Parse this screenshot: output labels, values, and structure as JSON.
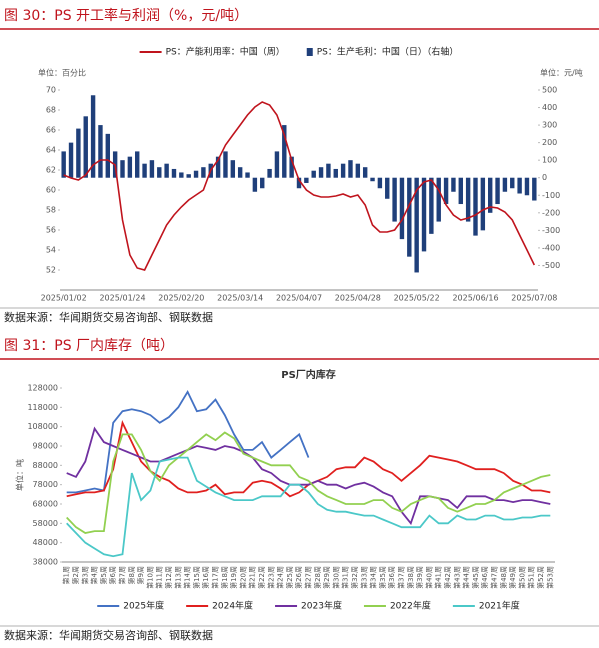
{
  "chart_data": [
    {
      "type": "combo",
      "caption": "图 30：PS 开工率与利润（%，元/吨）",
      "source": "数据来源：华闻期货交易咨询部、钢联数据",
      "y_label": "单位：百分比",
      "y2_label": "单位：元/吨",
      "categories": [
        "2025/01/02",
        null,
        null,
        null,
        null,
        null,
        null,
        null,
        "2025/01/24",
        null,
        null,
        null,
        null,
        null,
        null,
        null,
        "2025/02/20",
        null,
        null,
        null,
        null,
        null,
        null,
        null,
        "2025/03/14",
        null,
        null,
        null,
        null,
        null,
        null,
        null,
        "2025/04/07",
        null,
        null,
        null,
        null,
        null,
        null,
        null,
        "2025/04/28",
        null,
        null,
        null,
        null,
        null,
        null,
        null,
        "2025/05/22",
        null,
        null,
        null,
        null,
        null,
        null,
        null,
        "2025/06/16",
        null,
        null,
        null,
        null,
        null,
        null,
        null,
        "2025/07/08"
      ],
      "series": [
        {
          "name": "PS：产能利用率：中国（周）",
          "type": "line",
          "color": "#c0141d",
          "values": [
            61.5,
            61.2,
            61,
            61.5,
            62.5,
            63,
            63,
            62.5,
            57,
            53.5,
            52.2,
            52,
            53.5,
            55,
            56.5,
            57.5,
            58.3,
            59,
            59.5,
            60,
            62,
            63,
            64.5,
            65.5,
            66.5,
            67.5,
            68.3,
            68.8,
            68.5,
            67.5,
            65.5,
            63,
            61,
            60,
            59.5,
            59.3,
            59.3,
            59.4,
            59.6,
            59.3,
            59.5,
            58.5,
            56.5,
            55.8,
            55.8,
            56,
            57,
            58.5,
            60,
            60.8,
            61,
            60,
            58.5,
            57.5,
            57,
            57.2,
            57.5,
            58,
            58.3,
            58.2,
            57.8,
            57,
            55.5,
            54,
            52.5
          ]
        },
        {
          "name": "PS：生产毛利：中国（日）（右轴）",
          "type": "bar",
          "axis": "y2",
          "color": "#1f3f7a",
          "values": [
            150,
            200,
            280,
            350,
            470,
            300,
            250,
            150,
            100,
            120,
            150,
            80,
            100,
            60,
            80,
            50,
            30,
            20,
            40,
            60,
            80,
            120,
            150,
            100,
            60,
            30,
            -80,
            -60,
            50,
            150,
            300,
            120,
            -60,
            -30,
            40,
            60,
            80,
            50,
            80,
            100,
            80,
            60,
            -20,
            -60,
            -120,
            -250,
            -350,
            -450,
            -540,
            -420,
            -320,
            -250,
            -150,
            -80,
            -150,
            -250,
            -330,
            -300,
            -200,
            -150,
            -80,
            -60,
            -90,
            -100,
            -130
          ]
        }
      ],
      "ylim": [
        50,
        70
      ],
      "yticks": [
        52,
        54,
        56,
        58,
        60,
        62,
        64,
        66,
        68,
        70
      ],
      "y2lim": [
        -640,
        500
      ],
      "y2ticks": [
        500,
        400,
        300,
        200,
        100,
        0,
        -100,
        -200,
        -300,
        -400,
        -500
      ],
      "grid": false,
      "legend": "top"
    },
    {
      "type": "line",
      "caption": "图 31：PS 厂内库存（吨）",
      "source": "数据来源：华闻期货交易咨询部、钢联数据",
      "title": "PS厂内库存",
      "y_label": "单位：吨",
      "categories": [
        "第1周",
        "第2周",
        "第3周",
        "第4周",
        "第5周",
        "第6周",
        "第7周",
        "第8周",
        "第9周",
        "第10周",
        "第11周",
        "第12周",
        "第13周",
        "第14周",
        "第15周",
        "第16周",
        "第17周",
        "第18周",
        "第19周",
        "第20周",
        "第21周",
        "第22周",
        "第23周",
        "第24周",
        "第25周",
        "第26周",
        "第27周",
        "第28周",
        "第29周",
        "第30周",
        "第31周",
        "第32周",
        "第33周",
        "第34周",
        "第35周",
        "第36周",
        "第37周",
        "第38周",
        "第39周",
        "第40周",
        "第41周",
        "第42周",
        "第43周",
        "第44周",
        "第45周",
        "第46周",
        "第47周",
        "第48周",
        "第49周",
        "第50周",
        "第51周",
        "第52周",
        "第53周"
      ],
      "series": [
        {
          "name": "2025年度",
          "color": "#4472c4",
          "values": [
            74000,
            74000,
            75000,
            76000,
            75000,
            110000,
            116000,
            117000,
            116000,
            114000,
            110000,
            113000,
            118000,
            126000,
            116000,
            117000,
            122000,
            114000,
            104000,
            96000,
            96000,
            100000,
            92000,
            96000,
            100000,
            104000,
            92000,
            null,
            null,
            null,
            null,
            null,
            null,
            null,
            null,
            null,
            null,
            null,
            null,
            null,
            null,
            null,
            null,
            null,
            null,
            null,
            null,
            null,
            null,
            null,
            null,
            null,
            null
          ]
        },
        {
          "name": "2024年度",
          "color": "#e0201f",
          "values": [
            72000,
            73000,
            74000,
            74000,
            75000,
            86000,
            110000,
            100000,
            90000,
            85000,
            82000,
            80000,
            76000,
            74000,
            74000,
            75000,
            78000,
            73000,
            74000,
            74000,
            79000,
            80000,
            79000,
            76000,
            72000,
            74000,
            78000,
            80000,
            82000,
            86000,
            87000,
            87000,
            92000,
            90000,
            86000,
            84000,
            80000,
            84000,
            88000,
            93000,
            92000,
            91000,
            90000,
            88000,
            86000,
            86000,
            86000,
            84000,
            80000,
            78000,
            75000,
            75000,
            74000
          ]
        },
        {
          "name": "2023年度",
          "color": "#7030a0",
          "values": [
            84000,
            82000,
            90000,
            107000,
            100000,
            98000,
            96000,
            94000,
            92000,
            90000,
            90000,
            92000,
            94000,
            96000,
            98000,
            97000,
            96000,
            98000,
            97000,
            95000,
            92000,
            86000,
            84000,
            80000,
            78000,
            78000,
            78000,
            80000,
            78000,
            78000,
            76000,
            78000,
            79000,
            77000,
            74000,
            72000,
            64000,
            58000,
            72000,
            72000,
            71000,
            70000,
            66000,
            72000,
            72000,
            72000,
            70000,
            70000,
            69000,
            70000,
            70000,
            69000,
            68000
          ]
        },
        {
          "name": "2022年度",
          "color": "#92d050",
          "values": [
            61000,
            56000,
            53000,
            54000,
            54000,
            90000,
            104000,
            104000,
            96000,
            85000,
            80000,
            88000,
            92000,
            96000,
            100000,
            104000,
            101000,
            105000,
            102000,
            94000,
            92000,
            90000,
            88000,
            88000,
            88000,
            82000,
            80000,
            75000,
            72000,
            70000,
            68000,
            68000,
            68000,
            70000,
            70000,
            66000,
            64000,
            68000,
            70000,
            72000,
            71000,
            66000,
            64000,
            66000,
            68000,
            68000,
            70000,
            74000,
            76000,
            78000,
            80000,
            82000,
            83000
          ]
        },
        {
          "name": "2021年度",
          "color": "#4bc8c8",
          "values": [
            58000,
            53000,
            48000,
            45000,
            42000,
            41000,
            42000,
            84000,
            70000,
            75000,
            90000,
            91000,
            92000,
            92000,
            80000,
            77000,
            74000,
            72000,
            70000,
            70000,
            70000,
            72000,
            72000,
            72000,
            78000,
            78000,
            74000,
            68000,
            65000,
            64000,
            64000,
            63000,
            62000,
            62000,
            60000,
            58000,
            56000,
            56000,
            56000,
            62000,
            58000,
            58000,
            62000,
            60000,
            60000,
            62000,
            62000,
            60000,
            60000,
            61000,
            61000,
            62000,
            62000
          ]
        }
      ],
      "ylim": [
        38000,
        128000
      ],
      "yticks": [
        38000,
        48000,
        58000,
        68000,
        78000,
        88000,
        98000,
        108000,
        118000,
        128000
      ],
      "grid": false,
      "legend": "bottom"
    }
  ]
}
